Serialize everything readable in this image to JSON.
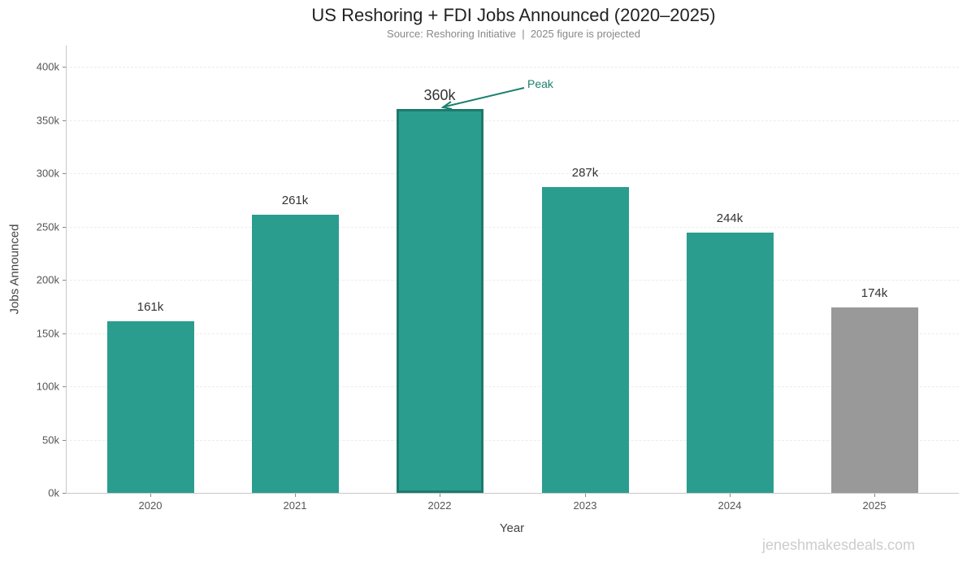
{
  "chart": {
    "title": "US Reshoring + FDI Jobs Announced (2020–2025)",
    "subtitle": "Source: Reshoring Initiative  |  2025 figure is projected",
    "xlabel": "Year",
    "ylabel": "Jobs Announced",
    "watermark": "jeneshmakesdeals.com",
    "annotation": "Peak",
    "yticks": [
      "0k",
      "50k",
      "100k",
      "150k",
      "200k",
      "250k",
      "300k",
      "350k",
      "400k"
    ],
    "bars": [
      {
        "year": "2020",
        "label": "161k",
        "value": 161,
        "color": "#2a9d8f"
      },
      {
        "year": "2021",
        "label": "261k",
        "value": 261,
        "color": "#2a9d8f"
      },
      {
        "year": "2022",
        "label": "360k",
        "value": 360,
        "color": "#2a9d8f",
        "highlight": true,
        "edge_color": "#1d7a6c"
      },
      {
        "year": "2023",
        "label": "287k",
        "value": 287,
        "color": "#2a9d8f"
      },
      {
        "year": "2024",
        "label": "244k",
        "value": 244,
        "color": "#2a9d8f"
      },
      {
        "year": "2025",
        "label": "174k",
        "value": 174,
        "color": "#999999"
      }
    ]
  },
  "chart_data": {
    "type": "bar",
    "title": "US Reshoring + FDI Jobs Announced (2020–2025)",
    "subtitle": "Source: Reshoring Initiative  |  2025 figure is projected",
    "categories": [
      "2020",
      "2021",
      "2022",
      "2023",
      "2024",
      "2025"
    ],
    "values": [
      161000,
      261000,
      360000,
      287000,
      244000,
      174000
    ],
    "data_labels": [
      "161k",
      "261k",
      "360k",
      "287k",
      "244k",
      "174k"
    ],
    "xlabel": "Year",
    "ylabel": "Jobs Announced",
    "ylim": [
      0,
      420000
    ],
    "yticks": [
      0,
      50000,
      100000,
      150000,
      200000,
      250000,
      300000,
      350000,
      400000
    ],
    "ytick_labels": [
      "0k",
      "50k",
      "100k",
      "150k",
      "200k",
      "250k",
      "300k",
      "350k",
      "400k"
    ],
    "grid": "horizontal dashed",
    "legend": null,
    "colors": {
      "actual": "#2a9d8f",
      "projected": "#999999",
      "peak_edge": "#1d7a6c"
    },
    "annotations": [
      {
        "text": "Peak",
        "target": "2022",
        "value": 360000,
        "color": "#1a7f6e"
      }
    ],
    "notes": [
      "2025 figure is projected"
    ]
  }
}
